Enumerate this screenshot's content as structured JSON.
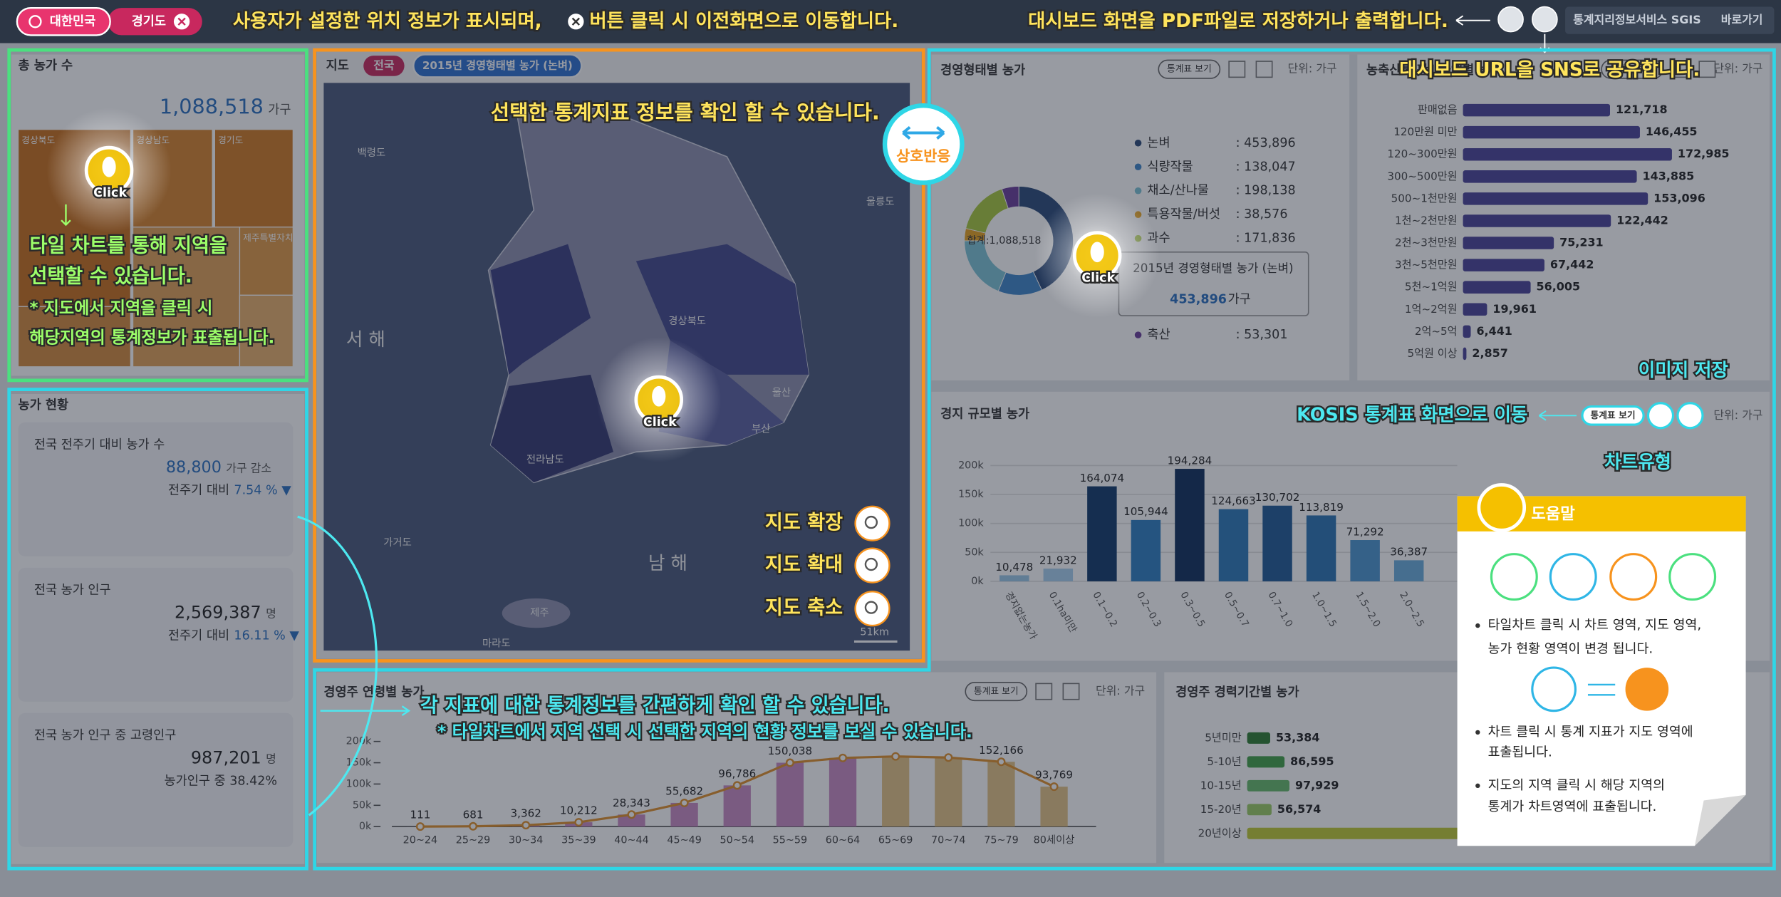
{
  "header": {
    "breadcrumb": [
      "대한민국",
      "경기도"
    ],
    "note": "사용자가 설정한 위치 정보가 표시되며,",
    "note_tail": "버튼 클릭 시 이전화면으로 이동합니다.",
    "pdf_note": "대시보드 화면을 PDF파일로 저장하거나 출력합니다.",
    "share_note": "대시보드 URL을 SNS로 공유합니다.",
    "logo": "통계지리정보서비스 SGIS",
    "shortcut": "바로가기"
  },
  "tile_panel": {
    "title": "총 농가 수",
    "total": "1,088,518",
    "unit": "가구",
    "tiles": [
      "경상북도",
      "경상남도",
      "경기도",
      "제주특별자치도"
    ],
    "click": "Click",
    "notes": [
      "타일 차트를 통해 지역을",
      "선택할 수 있습니다.",
      "* 지도에서 지역을 클릭 시",
      "해당지역의 통계정보가 표출됩니다."
    ]
  },
  "status_panel": {
    "title": "농가 현황",
    "cards": [
      {
        "label": "전국 전주기 대비 농가 수",
        "value": "88,800",
        "unit": "가구 감소",
        "compare": "전주기 대비",
        "rate": "7.54 % ▼"
      },
      {
        "label": "전국 농가 인구",
        "value": "2,569,387",
        "unit": "명",
        "compare": "전주기 대비",
        "rate": "16.11 % ▼"
      },
      {
        "label": "전국 농가 인구 중 고령인구",
        "value": "987,201",
        "unit": "명",
        "compare": "농가인구 중 38.42%"
      }
    ]
  },
  "map_panel": {
    "title": "지도",
    "scope": "전국",
    "indicator": "2015년 경영형태별 농가 (논벼)",
    "note": "선택한 통계지표 정보를 확인 할 수 있습니다.",
    "interaction": "상호반응",
    "click": "Click",
    "labels": [
      "백령도",
      "울릉도",
      "서 해",
      "남 해",
      "울산",
      "부산",
      "가거도",
      "마라도",
      "제주",
      "경상북도",
      "전라남도"
    ],
    "controls": [
      "지도 확장",
      "지도 확대",
      "지도 축소"
    ],
    "scale": "51km"
  },
  "chart_tools": {
    "table_button": "통계표 보기",
    "unit": "단위: 가구",
    "kosis_note": "KOSIS 통계표 화면으로 이동",
    "image_note": "이미지 저장",
    "type_note": "차트유형",
    "click": "Click"
  },
  "chart_data": [
    {
      "type": "pie",
      "title": "경영형태별 농가",
      "center": "합계:1,088,518",
      "categories": [
        "논벼",
        "식량작물",
        "채소/산나물",
        "특용작물/버섯",
        "과수",
        "축산"
      ],
      "values": [
        453896,
        138047,
        198138,
        38576,
        171836,
        53301
      ],
      "value_labels": [
        ": 453,896",
        ": 138,047",
        ": 198,138",
        ": 38,576",
        ": 171,836",
        ": 53,301"
      ],
      "colors": [
        "#2a4a78",
        "#3f86c8",
        "#7cc3d6",
        "#e8a21e",
        "#a8c83c",
        "#6a3d9a"
      ],
      "tooltip": {
        "title": "2015년 경영형태별 농가 (논벼)",
        "value": "453,896",
        "unit": "가구"
      }
    },
    {
      "type": "bar",
      "title": "농축산물 판매금액별 농가",
      "orientation": "horizontal",
      "categories": [
        "판매없음",
        "120만원 미만",
        "120~300만원",
        "300~500만원",
        "500~1천만원",
        "1천~2천만원",
        "2천~3천만원",
        "3천~5천만원",
        "5천~1억원",
        "1억~2억원",
        "2억~5억",
        "5억원 이상"
      ],
      "values": [
        121718,
        146455,
        172985,
        143885,
        153096,
        122442,
        75231,
        67442,
        56005,
        19961,
        6441,
        2857
      ],
      "value_labels": [
        "121,718",
        "146,455",
        "172,985",
        "143,885",
        "153,096",
        "122,442",
        "75,231",
        "67,442",
        "56,005",
        "19,961",
        "6,441",
        "2,857"
      ],
      "color": "#4a4398"
    },
    {
      "type": "bar",
      "title": "경지 규모별 농가",
      "categories": [
        "경지없는농가",
        "0.1ha미만",
        "0.1~0.2",
        "0.2~0.3",
        "0.3~0.5",
        "0.5~0.7",
        "0.7~1.0",
        "1.0~1.5",
        "1.5~2.0",
        "2.0~2.5"
      ],
      "values": [
        10478,
        21932,
        164074,
        105944,
        194284,
        124663,
        130702,
        113819,
        71292,
        36387
      ],
      "value_labels": [
        "10,478",
        "21,932",
        "164,074",
        "105,944",
        "194,284",
        "124,663",
        "130,702",
        "113,819",
        "71,292",
        "36,387"
      ],
      "colors": [
        "#9cc8e8",
        "#a8d0ee",
        "#123a6b",
        "#2f7fc1",
        "#0f2f5c",
        "#2d78b8",
        "#1f5a96",
        "#2a73b2",
        "#4b95cf",
        "#6aaedd"
      ],
      "ylim": [
        0,
        200000
      ],
      "yticks": [
        {
          "value": 0,
          "label": "0k"
        },
        {
          "value": 50000,
          "label": "50k"
        },
        {
          "value": 100000,
          "label": "100k"
        },
        {
          "value": 150000,
          "label": "150k"
        },
        {
          "value": 200000,
          "label": "200k"
        }
      ]
    },
    {
      "type": "combo",
      "title": "경영주 연령별 농가",
      "categories": [
        "20~24",
        "25~29",
        "30~34",
        "35~39",
        "40~44",
        "45~49",
        "50~54",
        "55~59",
        "60~64",
        "65~69",
        "70~74",
        "75~79",
        "80세이상"
      ],
      "values": [
        111,
        681,
        3362,
        10212,
        28343,
        55682,
        96786,
        150038,
        161300,
        164800,
        162210,
        152166,
        93769
      ],
      "value_labels": [
        "111",
        "681",
        "3,362",
        "10,212",
        "28,343",
        "55,682",
        "96,786",
        "150,038",
        null,
        null,
        null,
        "152,166",
        "93,769"
      ],
      "colors": [
        "#c98bc3",
        "#c98bc3",
        "#c98bc3",
        "#c98bc3",
        "#c98bc3",
        "#c98bc3",
        "#c98bc3",
        "#c98bc3",
        "#c98bc3",
        "#e3c486",
        "#e3c486",
        "#e3c486",
        "#e3c486"
      ],
      "line_color": "#e0902a",
      "ylim": [
        0,
        200000
      ],
      "yticks": [
        {
          "value": 0,
          "label": "0k"
        },
        {
          "value": 50000,
          "label": "50k"
        },
        {
          "value": 100000,
          "label": "100k"
        },
        {
          "value": 150000,
          "label": "150k"
        },
        {
          "value": 200000,
          "label": "200k"
        }
      ]
    },
    {
      "type": "bar",
      "title": "경영주 경력기간별 농가",
      "orientation": "horizontal",
      "categories": [
        "5년미만",
        "5-10년",
        "10-15년",
        "15-20년",
        "20년이상"
      ],
      "values": [
        53384,
        86595,
        97929,
        56574,
        794036
      ],
      "value_labels": [
        "53,384",
        "86,595",
        "97,929",
        "56,574",
        null
      ],
      "colors": [
        "#2e7d32",
        "#43a047",
        "#66bb6a",
        "#9ccc65",
        "#c0ca33"
      ]
    }
  ],
  "bottom_note": [
    "각 지표에 대한 통계정보를 간편하게 확인 할 수 있습니다.",
    "* 타일차트에서 지역 선택 시 선택한 지역의 현황 정보를 보실 수 있습니다."
  ],
  "help": {
    "title": "도움말",
    "bullets": [
      [
        "타일차트 클릭 시 차트 영역, 지도 영역,",
        "농가 현황 영역이 변경 됩니다."
      ],
      [
        "차트 클릭 시 통계 지표가 지도 영역에",
        "표출됩니다."
      ],
      [
        "지도의 지역 클릭 시 해당 지역의",
        "통계가 차트영역에 표출됩니다."
      ]
    ]
  }
}
